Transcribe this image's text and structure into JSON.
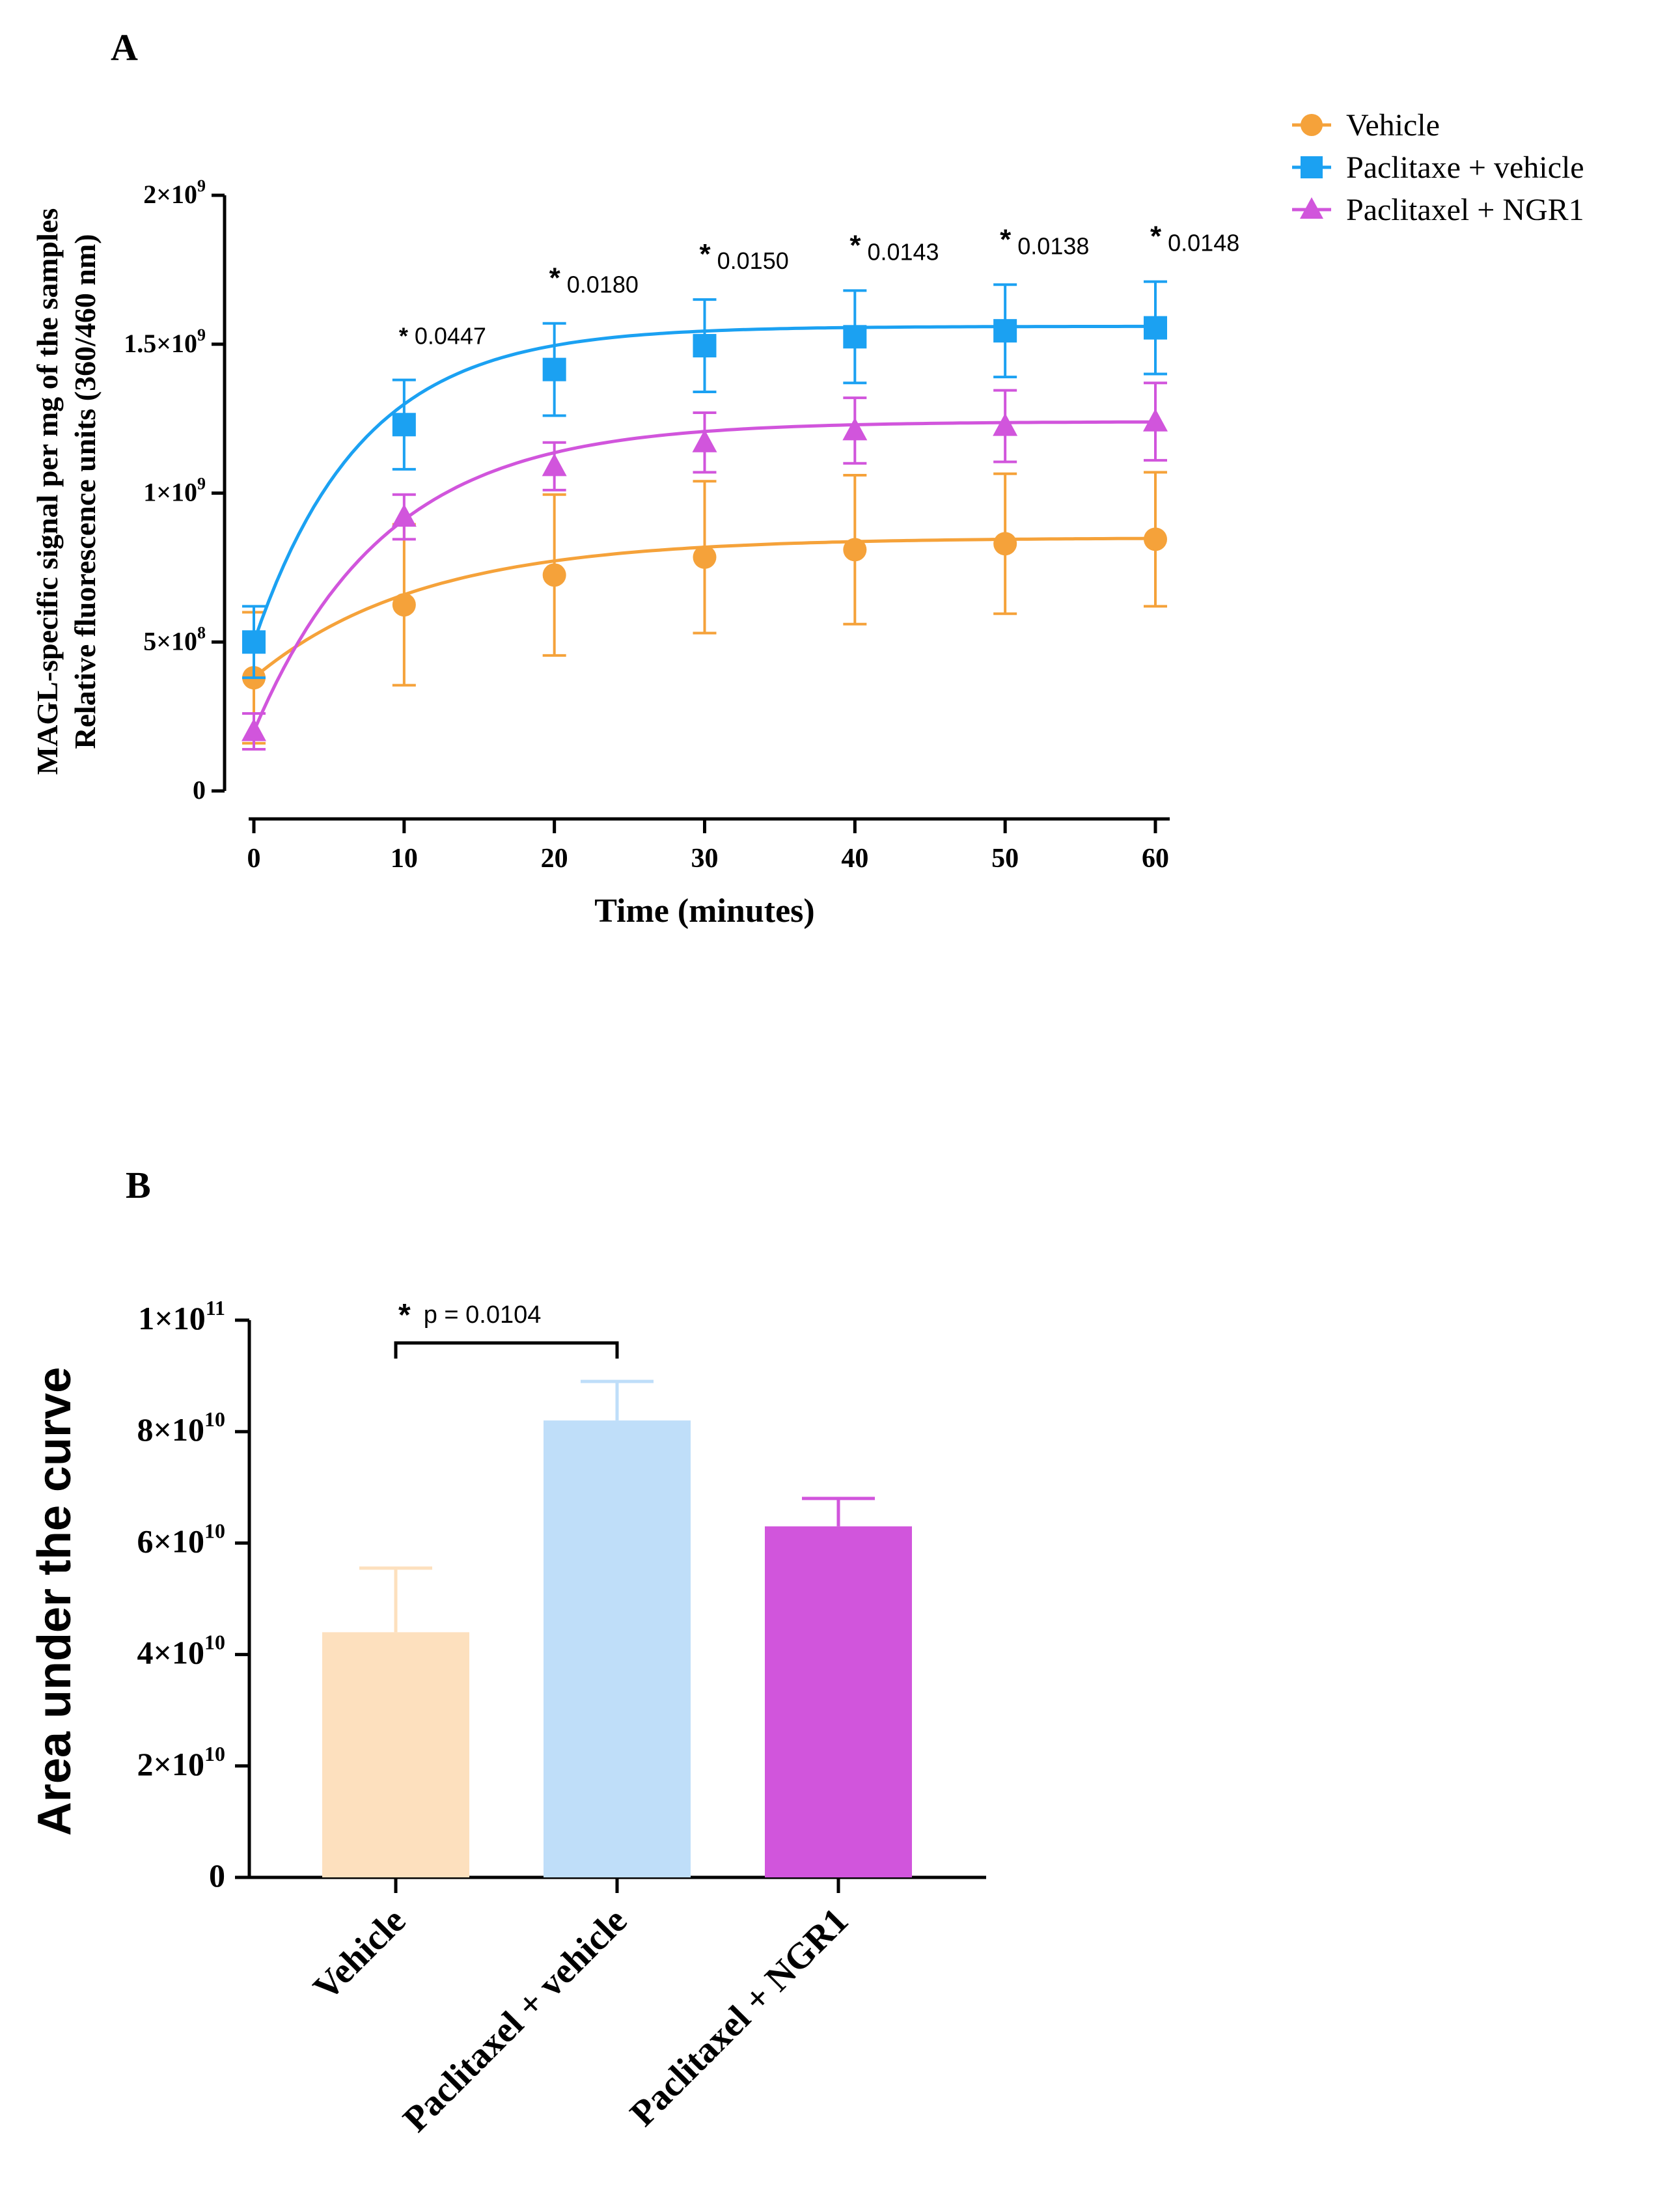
{
  "chart_data": [
    {
      "panel_label": "A",
      "type": "line",
      "title": "",
      "xlabel": "Time (minutes)",
      "ylabel_line1": "MAGL-specific signal per mg of the samples",
      "ylabel_line2": "Relative fluorescence units (360/460 nm)",
      "xlim": [
        0,
        60
      ],
      "ylim": [
        0,
        2000000000
      ],
      "x": [
        0,
        10,
        20,
        30,
        40,
        50,
        60
      ],
      "xtick_labels": [
        "0",
        "10",
        "20",
        "30",
        "40",
        "50",
        "60"
      ],
      "ytick_values": [
        0,
        500000000,
        1000000000,
        1500000000,
        2000000000
      ],
      "ytick_mantissa": [
        "0",
        "5×10",
        "1×10",
        "1.5×10",
        "2×10"
      ],
      "ytick_exponent": [
        "",
        "8",
        "9",
        "9",
        "9"
      ],
      "grid": false,
      "legend_position": "top-right",
      "series": [
        {
          "name": "Vehicle",
          "color": "#F5A23A",
          "marker": "circle",
          "values": [
            380000000,
            625000000,
            725000000,
            785000000,
            810000000,
            830000000,
            845000000
          ],
          "errors": [
            220000000,
            270000000,
            270000000,
            255000000,
            250000000,
            235000000,
            225000000
          ],
          "fit_plateau": 850000000,
          "fit_start": 380000000,
          "fit_k": 0.09
        },
        {
          "name": "Paclitaxe + vehicle",
          "color": "#1BA1F2",
          "marker": "square",
          "values": [
            500000000,
            1230000000,
            1415000000,
            1495000000,
            1525000000,
            1545000000,
            1555000000
          ],
          "errors": [
            120000000,
            150000000,
            155000000,
            155000000,
            155000000,
            155000000,
            155000000
          ],
          "fit_plateau": 1560000000,
          "fit_start": 500000000,
          "fit_k": 0.14
        },
        {
          "name": "Paclitaxel + NGR1",
          "color": "#D155DC",
          "marker": "triangle",
          "values": [
            200000000,
            920000000,
            1090000000,
            1170000000,
            1210000000,
            1225000000,
            1240000000
          ],
          "errors": [
            60000000,
            75000000,
            80000000,
            100000000,
            110000000,
            120000000,
            130000000
          ],
          "fit_plateau": 1240000000,
          "fit_start": 200000000,
          "fit_k": 0.115
        }
      ],
      "annotations": [
        {
          "x": 10,
          "star": "*",
          "text": "0.0447"
        },
        {
          "x": 20,
          "star": "*",
          "text": "0.0180"
        },
        {
          "x": 30,
          "star": "*",
          "text": "0.0150"
        },
        {
          "x": 40,
          "star": "*",
          "text": "0.0143"
        },
        {
          "x": 50,
          "star": "*",
          "text": "0.0138"
        },
        {
          "x": 60,
          "star": "*",
          "text": "0.0148"
        }
      ]
    },
    {
      "panel_label": "B",
      "type": "bar",
      "title": "",
      "xlabel": "",
      "ylabel": "Area under the curve",
      "ylim": [
        0,
        100000000000
      ],
      "ytick_values": [
        0,
        20000000000,
        40000000000,
        60000000000,
        80000000000,
        100000000000
      ],
      "ytick_mantissa": [
        "0",
        "2×10",
        "4×10",
        "6×10",
        "8×10",
        "1×10"
      ],
      "ytick_exponent": [
        "",
        "10",
        "10",
        "10",
        "10",
        "11"
      ],
      "grid": false,
      "categories": [
        "Vehicle",
        "Paclitaxel + vehicle",
        "Paclitaxel + NGR1"
      ],
      "values": [
        44000000000,
        82000000000,
        63000000000
      ],
      "errors": [
        11500000000,
        7000000000,
        5000000000
      ],
      "colors": [
        "#FDE0BE",
        "#BFDEF9",
        "#D155DC"
      ],
      "error_colors": [
        "#FDE0BE",
        "#BFDEF9",
        "#D155DC"
      ],
      "significance": {
        "from": 0,
        "to": 1,
        "star": "*",
        "text": "p = 0.0104"
      }
    }
  ]
}
